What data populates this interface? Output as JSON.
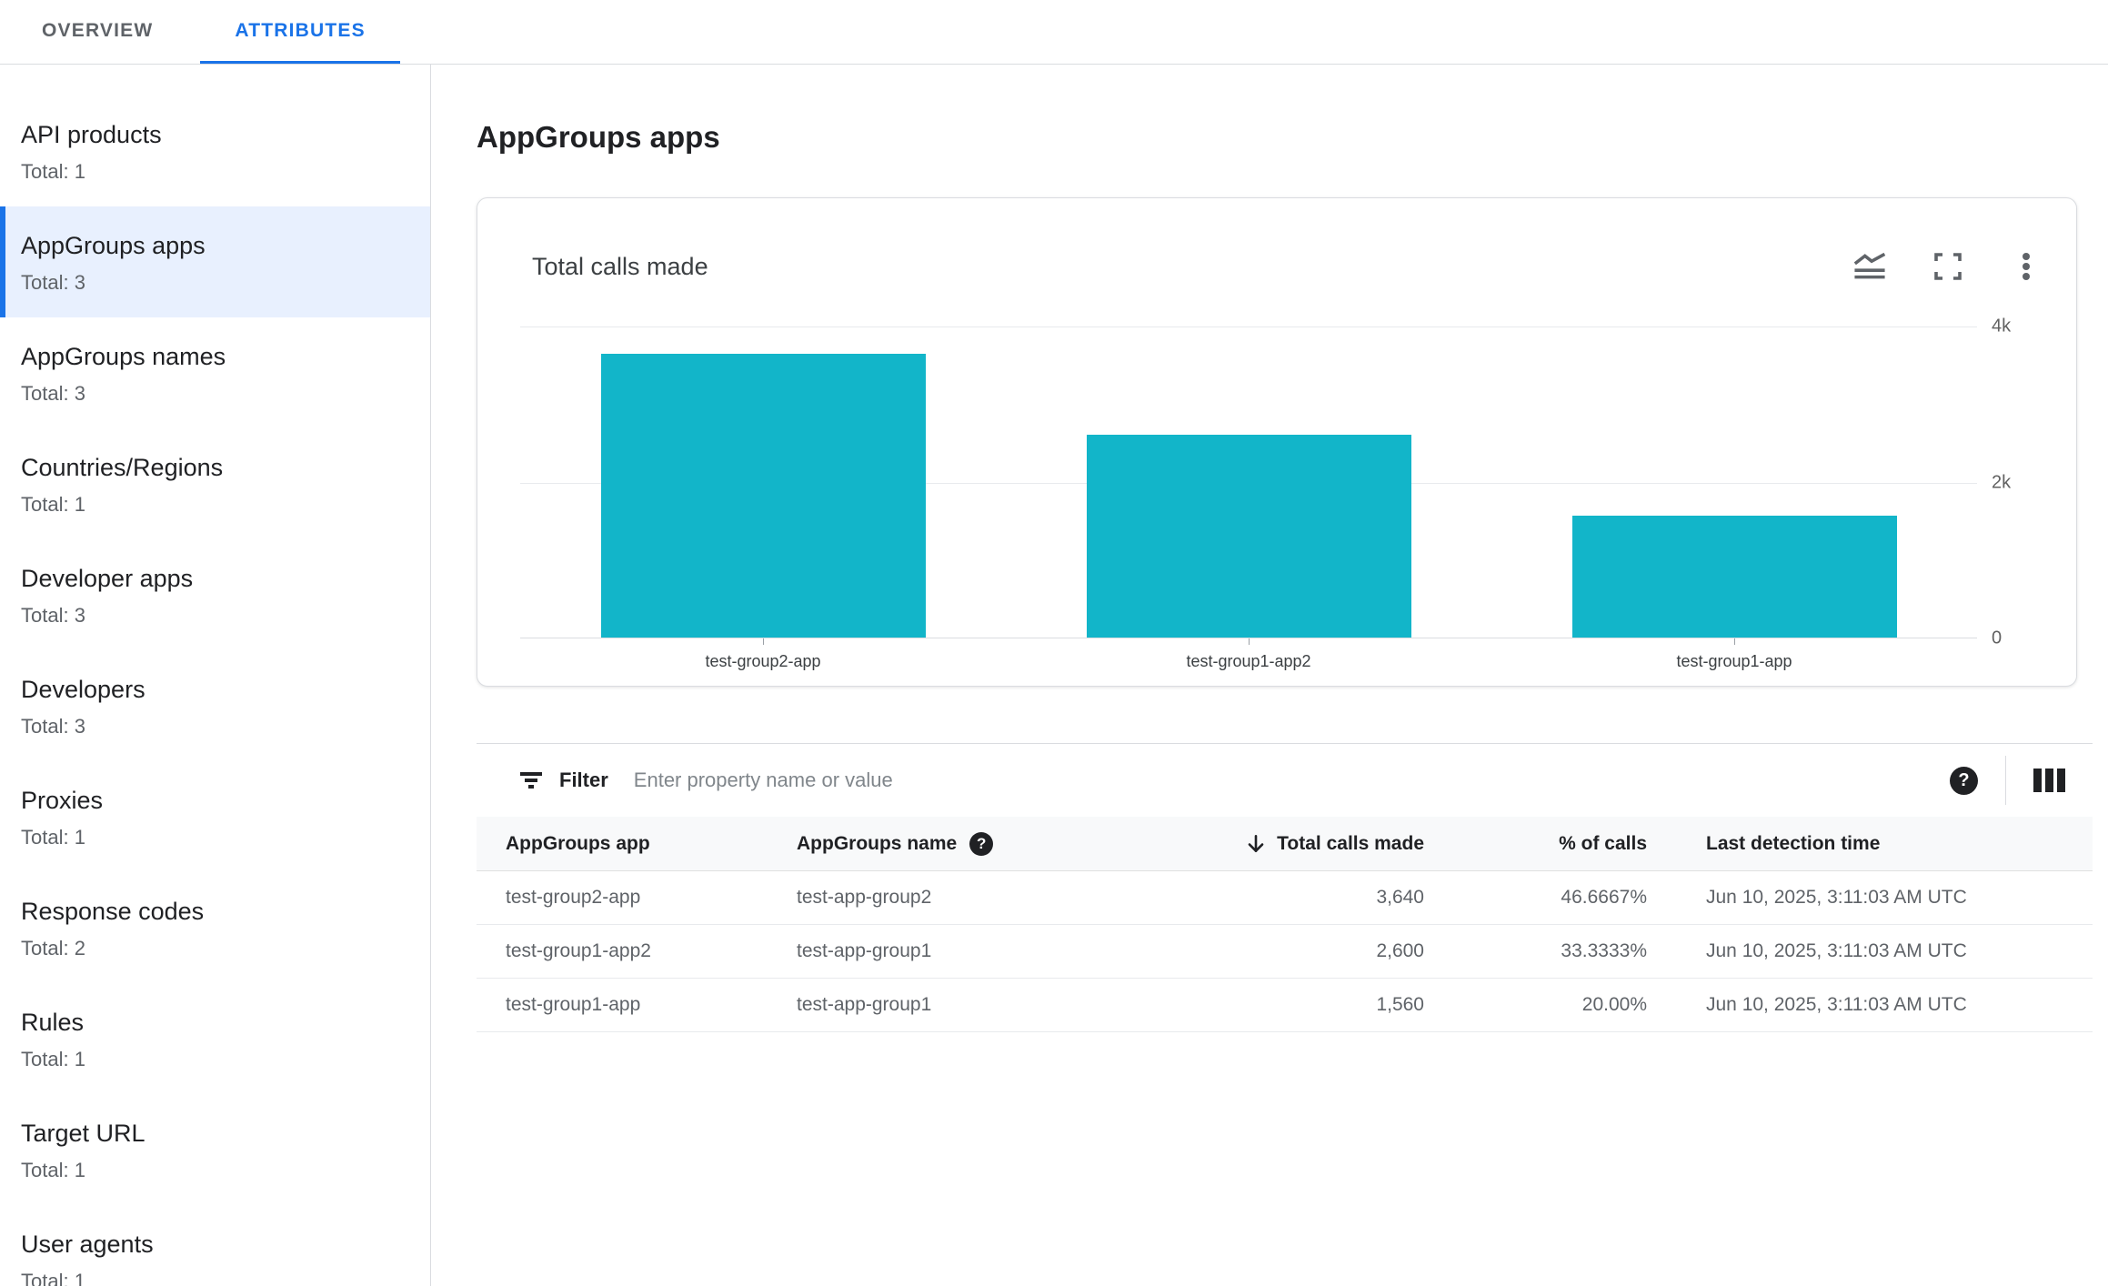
{
  "tabs": [
    {
      "label": "OVERVIEW",
      "active": false
    },
    {
      "label": "ATTRIBUTES",
      "active": true
    }
  ],
  "sidebar": {
    "items": [
      {
        "label": "API products",
        "total": "Total: 1",
        "selected": false
      },
      {
        "label": "AppGroups apps",
        "total": "Total: 3",
        "selected": true
      },
      {
        "label": "AppGroups names",
        "total": "Total: 3",
        "selected": false
      },
      {
        "label": "Countries/Regions",
        "total": "Total: 1",
        "selected": false
      },
      {
        "label": "Developer apps",
        "total": "Total: 3",
        "selected": false
      },
      {
        "label": "Developers",
        "total": "Total: 3",
        "selected": false
      },
      {
        "label": "Proxies",
        "total": "Total: 1",
        "selected": false
      },
      {
        "label": "Response codes",
        "total": "Total: 2",
        "selected": false
      },
      {
        "label": "Rules",
        "total": "Total: 1",
        "selected": false
      },
      {
        "label": "Target URL",
        "total": "Total: 1",
        "selected": false
      },
      {
        "label": "User agents",
        "total": "Total: 1",
        "selected": false
      }
    ]
  },
  "main": {
    "title": "AppGroups apps",
    "card": {
      "title": "Total calls made",
      "icons": [
        "area-chart-icon",
        "fullscreen-icon",
        "more-vert-icon"
      ]
    },
    "filter": {
      "label": "Filter",
      "placeholder": "Enter property name or value",
      "icons": [
        "filter-list-icon",
        "help-icon",
        "view-columns-icon"
      ]
    },
    "table": {
      "columns": {
        "app": "AppGroups app",
        "name": "AppGroups name",
        "calls": "Total calls made",
        "percent": "% of calls",
        "last": "Last detection time"
      },
      "sort": {
        "column": "Total calls made",
        "direction": "desc"
      },
      "rows": [
        {
          "app": "test-group2-app",
          "name": "test-app-group2",
          "calls": "3,640",
          "percent": "46.6667%",
          "last": "Jun 10, 2025, 3:11:03 AM UTC"
        },
        {
          "app": "test-group1-app2",
          "name": "test-app-group1",
          "calls": "2,600",
          "percent": "33.3333%",
          "last": "Jun 10, 2025, 3:11:03 AM UTC"
        },
        {
          "app": "test-group1-app",
          "name": "test-app-group1",
          "calls": "1,560",
          "percent": "20.00%",
          "last": "Jun 10, 2025, 3:11:03 AM UTC"
        }
      ]
    }
  },
  "chart_data": {
    "type": "bar",
    "title": "Total calls made",
    "categories": [
      "test-group2-app",
      "test-group1-app2",
      "test-group1-app"
    ],
    "values": [
      3640,
      2600,
      1560
    ],
    "xlabel": "",
    "ylabel": "",
    "ylim": [
      0,
      4000
    ],
    "yticks": [
      4000,
      2000,
      0
    ],
    "ytick_labels": [
      "4k",
      "2k",
      "0"
    ],
    "bar_color": "#12b5c9",
    "grid": true,
    "legend": false,
    "y_axis_position": "right"
  },
  "colors": {
    "accent_blue": "#1a73e8",
    "selected_bg": "#e8f0fe",
    "bar_teal": "#12b5c9",
    "text_primary": "#202124",
    "text_secondary": "#5f6368",
    "divider": "#dadce0",
    "table_header_bg": "#f8f9fa"
  }
}
